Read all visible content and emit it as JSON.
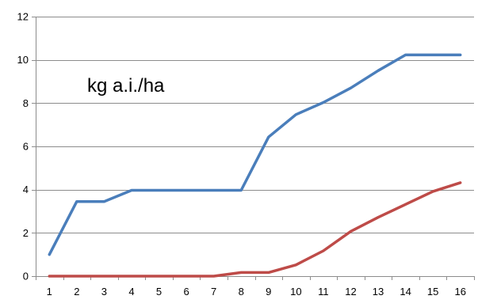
{
  "chart_data": {
    "type": "line",
    "title": "",
    "xlabel": "",
    "ylabel": "",
    "annotation": "kg a.i./ha",
    "x": [
      1,
      2,
      3,
      4,
      5,
      6,
      7,
      8,
      9,
      10,
      11,
      12,
      13,
      14,
      15,
      16
    ],
    "ylim": [
      0,
      12
    ],
    "yticks": [
      0,
      2,
      4,
      6,
      8,
      10,
      12
    ],
    "grid": "horizontal",
    "legend": "none",
    "series": [
      {
        "color": "#4A7EBB",
        "values": [
          1.0,
          3.45,
          3.45,
          3.97,
          3.97,
          3.97,
          3.97,
          3.97,
          6.43,
          7.47,
          8.03,
          8.7,
          9.5,
          10.23,
          10.23,
          10.23
        ]
      },
      {
        "color": "#BE4B48",
        "values": [
          0,
          0,
          0,
          0,
          0,
          0,
          0,
          0.17,
          0.17,
          0.52,
          1.17,
          2.07,
          2.72,
          3.32,
          3.92,
          4.32
        ]
      }
    ]
  }
}
